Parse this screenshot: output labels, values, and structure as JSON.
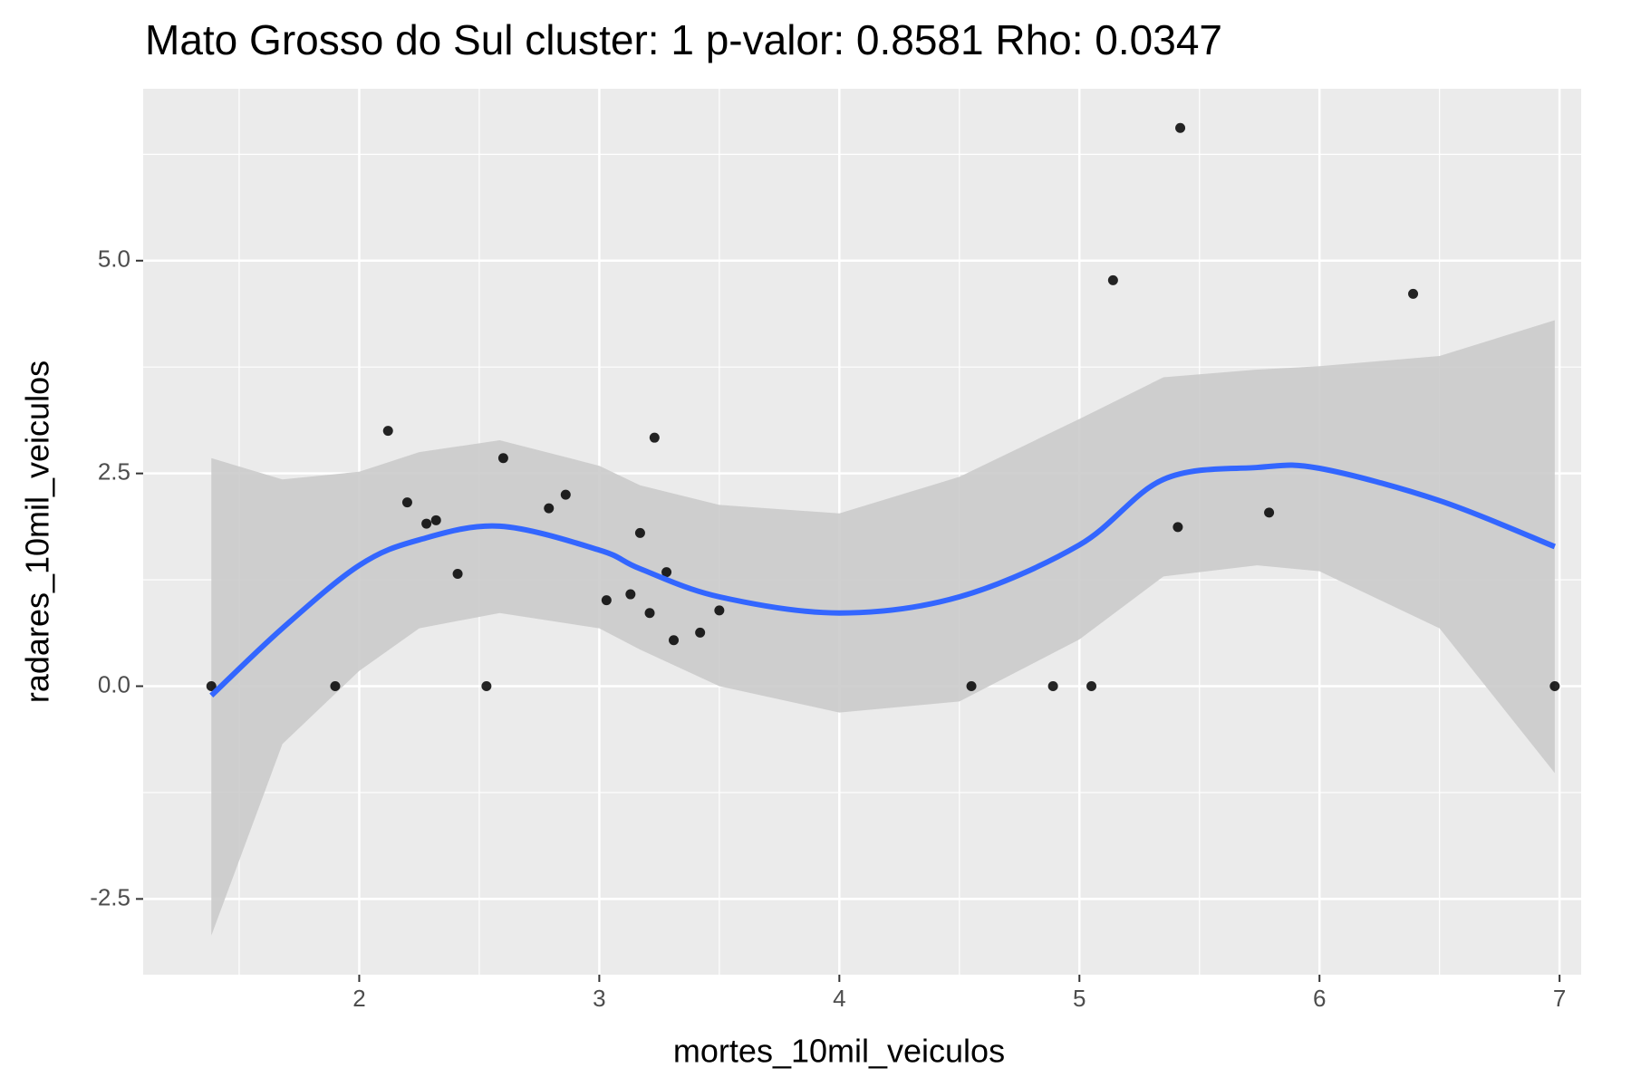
{
  "chart_data": {
    "type": "scatter",
    "title": "Mato Grosso do Sul cluster: 1 p-valor: 0.8581 Rho: 0.0347",
    "x_label": "mortes_10mil_veiculos",
    "y_label": "radares_10mil_veiculos",
    "x": [
      1.384,
      1.9,
      2.12,
      2.2,
      2.28,
      2.32,
      2.41,
      2.53,
      2.6,
      2.79,
      2.86,
      3.03,
      3.13,
      3.17,
      3.21,
      3.23,
      3.28,
      3.31,
      3.42,
      3.5,
      4.55,
      4.89,
      5.05,
      5.14,
      5.41,
      5.42,
      5.79,
      6.39,
      6.98
    ],
    "values": [
      0,
      0,
      3.0,
      2.16,
      1.91,
      1.95,
      1.32,
      0,
      2.68,
      2.09,
      2.25,
      1.01,
      1.08,
      1.8,
      0.86,
      2.92,
      1.34,
      0.54,
      0.63,
      0.89,
      0,
      0,
      0,
      4.77,
      1.87,
      6.56,
      2.04,
      4.61,
      0
    ],
    "color": "#000000",
    "smooth": {
      "color": "#3366ff",
      "band_color": "#cbcbcb",
      "x": [
        1.384,
        1.68,
        2.0,
        2.25,
        2.585,
        3.0,
        3.17,
        3.5,
        4.0,
        4.5,
        5.0,
        5.35,
        5.74,
        6.0,
        6.5,
        6.98
      ],
      "values": [
        -0.11,
        0.68,
        1.42,
        1.72,
        1.88,
        1.6,
        1.38,
        1.05,
        0.86,
        1.05,
        1.66,
        2.43,
        2.57,
        2.56,
        2.18,
        1.64
      ],
      "lower": [
        -2.93,
        -0.68,
        0.18,
        0.68,
        0.86,
        0.68,
        0.43,
        0,
        -0.31,
        -0.18,
        0.55,
        1.29,
        1.42,
        1.35,
        0.68,
        -1.02
      ],
      "upper": [
        2.68,
        2.43,
        2.52,
        2.75,
        2.89,
        2.59,
        2.36,
        2.13,
        2.03,
        2.46,
        3.14,
        3.63,
        3.72,
        3.76,
        3.88,
        4.3
      ]
    },
    "xlim": [
      1.1,
      7.09
    ],
    "ylim": [
      -3.39,
      7.02
    ],
    "xticks": [
      2,
      3,
      4,
      5,
      6,
      7
    ],
    "yticks": [
      {
        "value": -2.5,
        "label": "-2.5"
      },
      {
        "value": 0,
        "label": "0.0"
      },
      {
        "value": 2.5,
        "label": "2.5"
      },
      {
        "value": 5,
        "label": "5.0"
      }
    ],
    "grid": true
  }
}
